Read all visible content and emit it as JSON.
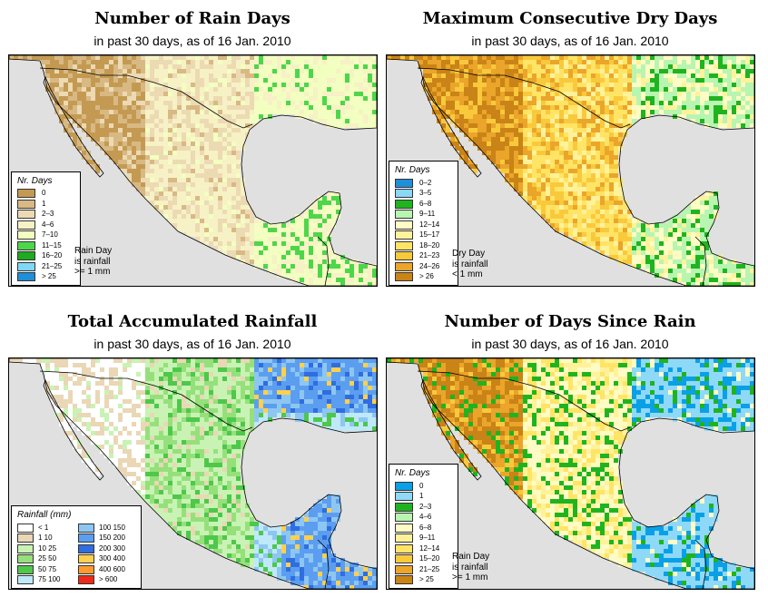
{
  "panels": [
    {
      "title": "Number of Rain Days",
      "subtitle": "in past 30 days, as of  16 Jan. 2010",
      "legend_title": "Nr. Days",
      "legend": [
        {
          "label": "0",
          "color": "#c49a52"
        },
        {
          "label": "1",
          "color": "#d8b984"
        },
        {
          "label": "2–3",
          "color": "#ecdab3"
        },
        {
          "label": "4–6",
          "color": "#f7f1c6"
        },
        {
          "label": "7–10",
          "color": "#f2ffc0"
        },
        {
          "label": "11–15",
          "color": "#4ed64a"
        },
        {
          "label": "16–20",
          "color": "#1faa1f"
        },
        {
          "label": "21–25",
          "color": "#7fd9f6"
        },
        {
          "label": "> 25",
          "color": "#1e8fd9"
        }
      ],
      "note": [
        "Rain Day",
        "is rainfall",
        ">= 1 mm"
      ]
    },
    {
      "title": "Maximum Consecutive Dry Days",
      "subtitle": "in past 30 days, as of  16 Jan. 2010",
      "legend_title": "Nr. Days",
      "legend": [
        {
          "label": "0–2",
          "color": "#1e8fd9"
        },
        {
          "label": "3–5",
          "color": "#8ad7f8"
        },
        {
          "label": "6–8",
          "color": "#1fb41f"
        },
        {
          "label": "9–11",
          "color": "#b8f5b0"
        },
        {
          "label": "12–14",
          "color": "#fffbc4"
        },
        {
          "label": "15–17",
          "color": "#fff29a"
        },
        {
          "label": "18–20",
          "color": "#ffe466"
        },
        {
          "label": "21–23",
          "color": "#f9c93c"
        },
        {
          "label": "24–26",
          "color": "#eaa52a"
        },
        {
          "label": "> 26",
          "color": "#c98316"
        }
      ],
      "note": [
        "Dry Day",
        "is rainfall",
        "< 1 mm"
      ]
    },
    {
      "title": "Total Accumulated Rainfall",
      "subtitle": "in past 30 days, as of  16 Jan. 2010",
      "legend_title": "Rainfall (mm)",
      "legend": [
        {
          "label": "< 1",
          "color": "#ffffff"
        },
        {
          "label": "1    10",
          "color": "#ead7b5"
        },
        {
          "label": "10    25",
          "color": "#c9f3b4"
        },
        {
          "label": "25    50",
          "color": "#96e07c"
        },
        {
          "label": "50    75",
          "color": "#4dc84a"
        },
        {
          "label": "75  100",
          "color": "#bfe9f9"
        },
        {
          "label": "100  150",
          "color": "#8ec6f2"
        },
        {
          "label": "150  200",
          "color": "#5b9ef0"
        },
        {
          "label": "200  300",
          "color": "#2f6de0"
        },
        {
          "label": "300  400",
          "color": "#ffd04e"
        },
        {
          "label": "400  600",
          "color": "#ff9a2e"
        },
        {
          "label": "> 600",
          "color": "#ee2a1a"
        }
      ],
      "note": []
    },
    {
      "title": "Number of Days Since Rain",
      "subtitle": "in past 30 days, as of  16 Jan. 2010",
      "legend_title": "Nr. Days",
      "legend": [
        {
          "label": "0",
          "color": "#0aa0e6"
        },
        {
          "label": "1",
          "color": "#8ed9f8"
        },
        {
          "label": "2–3",
          "color": "#1fb41f"
        },
        {
          "label": "4–6",
          "color": "#b8f5b0"
        },
        {
          "label": "6–8",
          "color": "#fffbc4"
        },
        {
          "label": "9–11",
          "color": "#fff29a"
        },
        {
          "label": "12–14",
          "color": "#ffe466"
        },
        {
          "label": "15–20",
          "color": "#f9c93c"
        },
        {
          "label": "21–25",
          "color": "#eaa52a"
        },
        {
          "label": "> 25",
          "color": "#c98316"
        }
      ],
      "note": [
        "Rain Day",
        "is rainfall",
        ">= 1 mm"
      ]
    }
  ]
}
